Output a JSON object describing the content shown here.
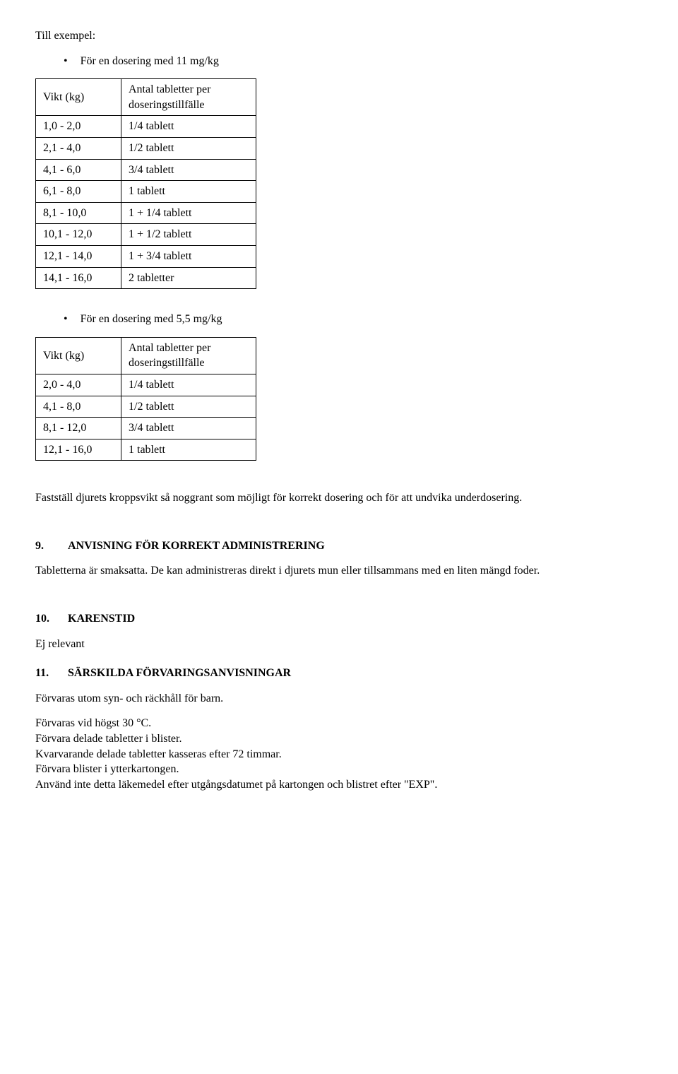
{
  "intro": "Till exempel:",
  "bullet1": "För en dosering med 11 mg/kg",
  "bullet2": "För en dosering med 5,5 mg/kg",
  "table_headers": {
    "weight": "Vikt (kg)",
    "qty": "Antal tabletter per doseringstillfälle"
  },
  "table1": [
    {
      "w": "1,0 - 2,0",
      "d": "1/4 tablett"
    },
    {
      "w": "2,1 - 4,0",
      "d": "1/2 tablett"
    },
    {
      "w": "4,1 - 6,0",
      "d": "3/4 tablett"
    },
    {
      "w": "6,1 - 8,0",
      "d": "1 tablett"
    },
    {
      "w": "8,1 - 10,0",
      "d": "1 + 1/4 tablett"
    },
    {
      "w": "10,1 - 12,0",
      "d": "1 + 1/2 tablett"
    },
    {
      "w": "12,1 - 14,0",
      "d": "1 + 3/4 tablett"
    },
    {
      "w": "14,1 - 16,0",
      "d": "2 tabletter"
    }
  ],
  "table2": [
    {
      "w": "2,0 - 4,0",
      "d": "1/4 tablett"
    },
    {
      "w": "4,1 - 8,0",
      "d": "1/2 tablett"
    },
    {
      "w": "8,1 - 12,0",
      "d": "3/4 tablett"
    },
    {
      "w": "12,1 - 16,0",
      "d": "1 tablett"
    }
  ],
  "para_after_tables": "Fastställ djurets kroppsvikt så noggrant som möjligt för korrekt dosering och för att undvika underdosering.",
  "sec9": {
    "num": "9.",
    "title": "ANVISNING FÖR KORREKT ADMINISTRERING"
  },
  "sec9_body": "Tabletterna är smaksatta. De kan administreras direkt i djurets mun eller tillsammans med en liten mängd foder.",
  "sec10": {
    "num": "10.",
    "title": "KARENSTID"
  },
  "sec10_body": "Ej relevant",
  "sec11": {
    "num": "11.",
    "title": "SÄRSKILDA FÖRVARINGSANVISNINGAR"
  },
  "sec11_lines": {
    "l1": "Förvaras utom syn- och räckhåll för barn.",
    "l2": "Förvaras vid högst 30 °C.",
    "l3": "Förvara delade tabletter i blister.",
    "l4": "Kvarvarande delade tabletter kasseras efter 72 timmar.",
    "l5": "Förvara blister i ytterkartongen.",
    "l6": "Använd inte detta läkemedel efter utgångsdatumet på kartongen och blistret efter \"EXP\"."
  }
}
